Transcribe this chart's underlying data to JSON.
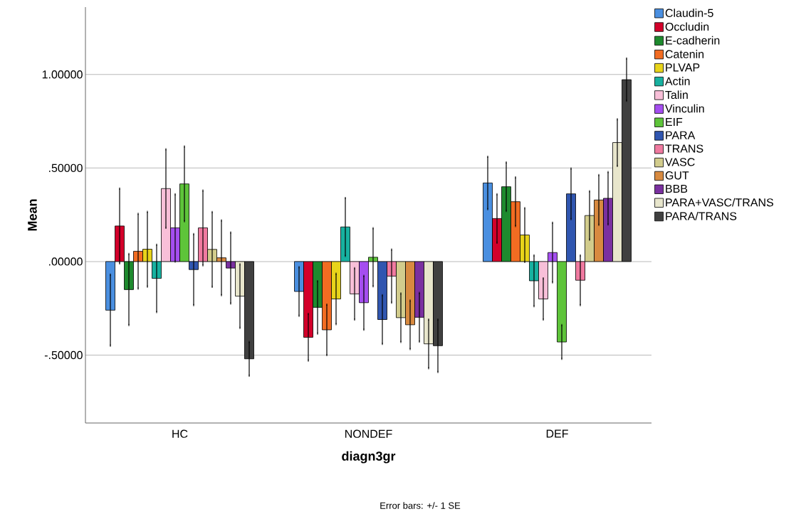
{
  "chart_data": {
    "type": "bar",
    "xlabel": "diagn3gr",
    "ylabel": "Mean",
    "categories": [
      "HC",
      "NONDEF",
      "DEF"
    ],
    "series": [
      {
        "name": "Claudin-5",
        "color": "#4a8fe0",
        "values": [
          -0.26,
          -0.16,
          0.42
        ],
        "errors": [
          0.19,
          0.13,
          0.14
        ]
      },
      {
        "name": "Occludin",
        "color": "#d3002a",
        "values": [
          0.19,
          -0.405,
          0.23
        ],
        "errors": [
          0.2,
          0.125,
          0.13
        ]
      },
      {
        "name": "E-cadherin",
        "color": "#1e8a2e",
        "values": [
          -0.15,
          -0.245,
          0.4
        ],
        "errors": [
          0.19,
          0.14,
          0.13
        ]
      },
      {
        "name": "Catenin",
        "color": "#f26c22",
        "values": [
          0.055,
          -0.365,
          0.32
        ],
        "errors": [
          0.2,
          0.135,
          0.13
        ]
      },
      {
        "name": "PLVAP",
        "color": "#e8d41a",
        "values": [
          0.066,
          -0.2,
          0.142
        ],
        "errors": [
          0.2,
          0.135,
          0.144
        ]
      },
      {
        "name": "Actin",
        "color": "#17b1a0",
        "values": [
          -0.09,
          0.185,
          -0.103
        ],
        "errors": [
          0.18,
          0.155,
          0.136
        ]
      },
      {
        "name": "Talin",
        "color": "#f8bfd8",
        "values": [
          0.39,
          -0.173,
          -0.2
        ],
        "errors": [
          0.21,
          0.137,
          0.11
        ]
      },
      {
        "name": "Vinculin",
        "color": "#a54ef0",
        "values": [
          0.18,
          -0.22,
          0.048
        ],
        "errors": [
          0.18,
          0.144,
          0.16
        ]
      },
      {
        "name": "EIF",
        "color": "#5ec43a",
        "values": [
          0.415,
          0.023,
          -0.43
        ],
        "errors": [
          0.2,
          0.155,
          0.09
        ]
      },
      {
        "name": "PARA",
        "color": "#3056b0",
        "values": [
          -0.043,
          -0.31,
          0.362
        ],
        "errors": [
          0.19,
          0.13,
          0.135
        ]
      },
      {
        "name": "TRANS",
        "color": "#f07aa0",
        "values": [
          0.18,
          -0.078,
          -0.1
        ],
        "errors": [
          0.2,
          0.142,
          0.133
        ]
      },
      {
        "name": "VASC",
        "color": "#d2cc8c",
        "values": [
          0.065,
          -0.3,
          0.246
        ],
        "errors": [
          0.2,
          0.13,
          0.13
        ]
      },
      {
        "name": "GUT",
        "color": "#d88a40",
        "values": [
          0.02,
          -0.338,
          0.329
        ],
        "errors": [
          0.2,
          0.13,
          0.133
        ]
      },
      {
        "name": "BBB",
        "color": "#7a30a0",
        "values": [
          -0.035,
          -0.298,
          0.338
        ],
        "errors": [
          0.19,
          0.13,
          0.14
        ]
      },
      {
        "name": "PARA+VASC/TRANS",
        "color": "#e8e6cc",
        "values": [
          -0.185,
          -0.44,
          0.636
        ],
        "errors": [
          0.17,
          0.13,
          0.125
        ]
      },
      {
        "name": "PARA/TRANS",
        "color": "#404040",
        "values": [
          -0.52,
          -0.45,
          0.972
        ],
        "errors": [
          0.09,
          0.14,
          0.113
        ]
      }
    ],
    "ylim": [
      -0.863,
      1.36
    ],
    "yticks": [
      {
        "value": -0.5,
        "label": "-.50000"
      },
      {
        "value": 0,
        "label": ".00000"
      },
      {
        "value": 0.5,
        "label": ".50000"
      },
      {
        "value": 1,
        "label": "1.00000"
      }
    ],
    "grid": "y",
    "legend": "right",
    "annotations": [
      "Error bars: +/- 1 SE"
    ]
  }
}
